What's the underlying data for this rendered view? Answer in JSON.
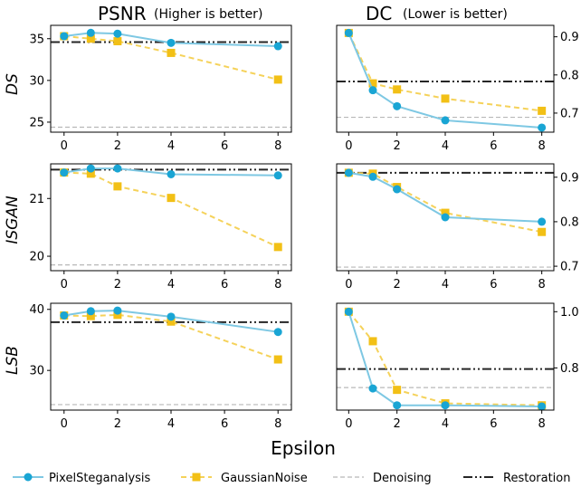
{
  "chart_data": {
    "type": "line",
    "xlabel": "Epsilon",
    "columns": [
      {
        "title": "PSNR",
        "subtitle": "(Higher is better)",
        "ylabel_side": "left"
      },
      {
        "title": "DC",
        "subtitle": "(Lower is better)",
        "ylabel_side": "right"
      }
    ],
    "rows": [
      "DS",
      "ISGAN",
      "LSB"
    ],
    "x": [
      0,
      1,
      2,
      4,
      8
    ],
    "xlim": [
      -0.5,
      8.5
    ],
    "xticks": [
      0,
      2,
      4,
      6,
      8
    ],
    "legend": {
      "placement": "bottom",
      "entries": [
        "PixelSteganalysis",
        "GaussianNoise",
        "Denoising",
        "Restoration"
      ]
    },
    "colors": {
      "PixelSteganalysis": "#7ec8e3",
      "PixelSteganalysis_marker": "#19a5d4",
      "GaussianNoise": "#f5d25a",
      "GaussianNoise_marker": "#f2c016",
      "Denoising": "#b8b8b8",
      "Restoration": "#262626"
    },
    "panels": [
      {
        "row": "DS",
        "metric": "PSNR",
        "ylim": [
          23.8,
          36.6
        ],
        "yticks": [
          25,
          30,
          35
        ],
        "series": [
          {
            "name": "PixelSteganalysis",
            "values": [
              35.3,
              35.7,
              35.6,
              34.5,
              34.1
            ]
          },
          {
            "name": "GaussianNoise",
            "values": [
              35.3,
              35.0,
              34.7,
              33.3,
              30.1
            ]
          }
        ],
        "denoising": 24.4,
        "restoration": 34.6
      },
      {
        "row": "DS",
        "metric": "DC",
        "ylim": [
          0.65,
          0.93
        ],
        "yticks": [
          0.7,
          0.8,
          0.9
        ],
        "series": [
          {
            "name": "PixelSteganalysis",
            "values": [
              0.91,
              0.76,
              0.718,
              0.681,
              0.662
            ]
          },
          {
            "name": "GaussianNoise",
            "values": [
              0.91,
              0.778,
              0.762,
              0.738,
              0.706
            ]
          }
        ],
        "denoising": 0.689,
        "restoration": 0.783
      },
      {
        "row": "ISGAN",
        "metric": "PSNR",
        "ylim": [
          19.75,
          21.6
        ],
        "yticks": [
          20,
          21
        ],
        "series": [
          {
            "name": "PixelSteganalysis",
            "values": [
              21.45,
              21.52,
              21.52,
              21.42,
              21.4
            ]
          },
          {
            "name": "GaussianNoise",
            "values": [
              21.45,
              21.43,
              21.21,
              21.01,
              20.16
            ]
          }
        ],
        "denoising": 19.85,
        "restoration": 21.5
      },
      {
        "row": "ISGAN",
        "metric": "DC",
        "ylim": [
          0.69,
          0.93
        ],
        "yticks": [
          0.7,
          0.8,
          0.9
        ],
        "series": [
          {
            "name": "PixelSteganalysis",
            "values": [
              0.91,
              0.901,
              0.873,
              0.81,
              0.8
            ]
          },
          {
            "name": "GaussianNoise",
            "values": [
              0.91,
              0.908,
              0.878,
              0.82,
              0.777
            ]
          }
        ],
        "denoising": 0.698,
        "restoration": 0.91
      },
      {
        "row": "LSB",
        "metric": "PSNR",
        "ylim": [
          23.5,
          41
        ],
        "yticks": [
          30,
          40
        ],
        "series": [
          {
            "name": "PixelSteganalysis",
            "values": [
              39.0,
              39.7,
              39.8,
              38.8,
              36.3
            ]
          },
          {
            "name": "GaussianNoise",
            "values": [
              39.0,
              38.9,
              39.1,
              38.0,
              31.8
            ]
          }
        ],
        "denoising": 24.4,
        "restoration": 37.9
      },
      {
        "row": "LSB",
        "metric": "DC",
        "ylim": [
          0.65,
          1.03
        ],
        "yticks": [
          0.8,
          1.0
        ],
        "series": [
          {
            "name": "PixelSteganalysis",
            "values": [
              1.0,
              0.727,
              0.667,
              0.667,
              0.663
            ]
          },
          {
            "name": "GaussianNoise",
            "values": [
              1.0,
              0.895,
              0.722,
              0.674,
              0.667
            ]
          }
        ],
        "denoising": 0.73,
        "restoration": 0.796
      }
    ]
  }
}
